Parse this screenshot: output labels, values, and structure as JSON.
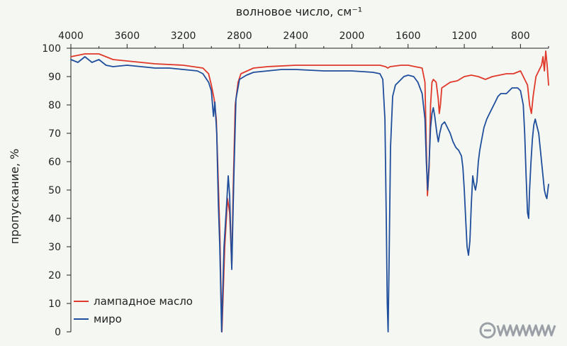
{
  "chart_data": {
    "type": "line",
    "xlabel": "волновое число, см⁻¹",
    "ylabel": "пропускание, %",
    "xlim": [
      4000,
      600
    ],
    "ylim": [
      0,
      100
    ],
    "x_ticks": [
      4000,
      3600,
      3200,
      2800,
      2400,
      2000,
      1600,
      1200,
      800
    ],
    "y_ticks": [
      0,
      10,
      20,
      30,
      40,
      50,
      60,
      70,
      80,
      90,
      100
    ],
    "x_axis_position": "top",
    "grid": false,
    "legend_position": "bottom-left",
    "series": [
      {
        "name": "лампадное масло",
        "color": "#e0392b",
        "points": [
          [
            4000,
            97
          ],
          [
            3900,
            98
          ],
          [
            3800,
            98
          ],
          [
            3700,
            96
          ],
          [
            3600,
            95.5
          ],
          [
            3400,
            94.5
          ],
          [
            3200,
            94
          ],
          [
            3060,
            93
          ],
          [
            3020,
            91
          ],
          [
            3000,
            87
          ],
          [
            2980,
            82
          ],
          [
            2965,
            75
          ],
          [
            2950,
            52
          ],
          [
            2940,
            35
          ],
          [
            2925,
            0
          ],
          [
            2905,
            30
          ],
          [
            2885,
            47
          ],
          [
            2870,
            42
          ],
          [
            2855,
            23
          ],
          [
            2845,
            50
          ],
          [
            2830,
            80
          ],
          [
            2810,
            88
          ],
          [
            2790,
            91
          ],
          [
            2700,
            93
          ],
          [
            2600,
            93.5
          ],
          [
            2400,
            94
          ],
          [
            2200,
            94
          ],
          [
            2000,
            94
          ],
          [
            1800,
            94
          ],
          [
            1760,
            93.5
          ],
          [
            1744,
            93
          ],
          [
            1728,
            93.5
          ],
          [
            1650,
            94
          ],
          [
            1600,
            94
          ],
          [
            1550,
            93.5
          ],
          [
            1500,
            93
          ],
          [
            1480,
            88
          ],
          [
            1470,
            65
          ],
          [
            1462,
            48
          ],
          [
            1450,
            58
          ],
          [
            1440,
            80
          ],
          [
            1430,
            88
          ],
          [
            1420,
            89
          ],
          [
            1400,
            88
          ],
          [
            1385,
            82
          ],
          [
            1378,
            77
          ],
          [
            1370,
            80
          ],
          [
            1360,
            86
          ],
          [
            1330,
            87
          ],
          [
            1300,
            88
          ],
          [
            1250,
            88.5
          ],
          [
            1200,
            90
          ],
          [
            1150,
            90.5
          ],
          [
            1100,
            90
          ],
          [
            1050,
            89
          ],
          [
            1000,
            90
          ],
          [
            900,
            91
          ],
          [
            850,
            91
          ],
          [
            800,
            92
          ],
          [
            750,
            87
          ],
          [
            735,
            80
          ],
          [
            722,
            77
          ],
          [
            710,
            83
          ],
          [
            690,
            90
          ],
          [
            670,
            92
          ],
          [
            650,
            94
          ],
          [
            640,
            97
          ],
          [
            630,
            92
          ],
          [
            620,
            99
          ],
          [
            610,
            94
          ],
          [
            600,
            87
          ]
        ]
      },
      {
        "name": "миро",
        "color": "#1f4e9c",
        "points": [
          [
            4000,
            96
          ],
          [
            3950,
            95
          ],
          [
            3900,
            97
          ],
          [
            3850,
            95
          ],
          [
            3800,
            96
          ],
          [
            3750,
            94
          ],
          [
            3700,
            93.5
          ],
          [
            3600,
            94
          ],
          [
            3500,
            93.5
          ],
          [
            3400,
            93
          ],
          [
            3300,
            93
          ],
          [
            3200,
            92.5
          ],
          [
            3100,
            92
          ],
          [
            3060,
            91
          ],
          [
            3020,
            88
          ],
          [
            3000,
            85
          ],
          [
            2985,
            76
          ],
          [
            2975,
            81
          ],
          [
            2962,
            70
          ],
          [
            2950,
            45
          ],
          [
            2940,
            30
          ],
          [
            2927,
            0
          ],
          [
            2910,
            30
          ],
          [
            2890,
            46
          ],
          [
            2880,
            55
          ],
          [
            2870,
            48
          ],
          [
            2855,
            22
          ],
          [
            2840,
            55
          ],
          [
            2825,
            82
          ],
          [
            2800,
            89
          ],
          [
            2750,
            90.5
          ],
          [
            2700,
            91.5
          ],
          [
            2600,
            92
          ],
          [
            2500,
            92.5
          ],
          [
            2400,
            92.5
          ],
          [
            2200,
            92
          ],
          [
            2000,
            92
          ],
          [
            1850,
            91.5
          ],
          [
            1800,
            91
          ],
          [
            1780,
            89
          ],
          [
            1765,
            75
          ],
          [
            1755,
            40
          ],
          [
            1748,
            10
          ],
          [
            1742,
            0
          ],
          [
            1735,
            25
          ],
          [
            1725,
            65
          ],
          [
            1710,
            83
          ],
          [
            1690,
            87
          ],
          [
            1660,
            88.5
          ],
          [
            1630,
            90
          ],
          [
            1600,
            90.5
          ],
          [
            1560,
            90
          ],
          [
            1530,
            88
          ],
          [
            1500,
            84
          ],
          [
            1480,
            75
          ],
          [
            1470,
            60
          ],
          [
            1460,
            50
          ],
          [
            1450,
            60
          ],
          [
            1440,
            72
          ],
          [
            1430,
            77
          ],
          [
            1420,
            79
          ],
          [
            1410,
            76
          ],
          [
            1395,
            70
          ],
          [
            1385,
            67
          ],
          [
            1375,
            70
          ],
          [
            1360,
            73
          ],
          [
            1340,
            74
          ],
          [
            1320,
            72
          ],
          [
            1300,
            70
          ],
          [
            1280,
            67
          ],
          [
            1260,
            65
          ],
          [
            1240,
            64
          ],
          [
            1220,
            62
          ],
          [
            1210,
            58
          ],
          [
            1200,
            50
          ],
          [
            1190,
            40
          ],
          [
            1180,
            30
          ],
          [
            1170,
            27
          ],
          [
            1160,
            32
          ],
          [
            1150,
            45
          ],
          [
            1140,
            55
          ],
          [
            1130,
            52
          ],
          [
            1120,
            50
          ],
          [
            1110,
            53
          ],
          [
            1100,
            60
          ],
          [
            1090,
            64
          ],
          [
            1075,
            68
          ],
          [
            1060,
            72
          ],
          [
            1040,
            75
          ],
          [
            1020,
            77
          ],
          [
            1000,
            79
          ],
          [
            980,
            81
          ],
          [
            960,
            83
          ],
          [
            940,
            84
          ],
          [
            920,
            84
          ],
          [
            900,
            84
          ],
          [
            880,
            85
          ],
          [
            860,
            86
          ],
          [
            840,
            86
          ],
          [
            820,
            86
          ],
          [
            800,
            85
          ],
          [
            780,
            80
          ],
          [
            770,
            70
          ],
          [
            760,
            55
          ],
          [
            750,
            42
          ],
          [
            742,
            40
          ],
          [
            735,
            50
          ],
          [
            725,
            60
          ],
          [
            715,
            68
          ],
          [
            705,
            73
          ],
          [
            695,
            75
          ],
          [
            685,
            73
          ],
          [
            670,
            70
          ],
          [
            660,
            65
          ],
          [
            650,
            60
          ],
          [
            640,
            55
          ],
          [
            630,
            50
          ],
          [
            620,
            48
          ],
          [
            612,
            47
          ],
          [
            605,
            50
          ],
          [
            600,
            52
          ]
        ]
      }
    ]
  },
  "logo": {
    "text": "ЭЛЕМЕНТЫ"
  }
}
